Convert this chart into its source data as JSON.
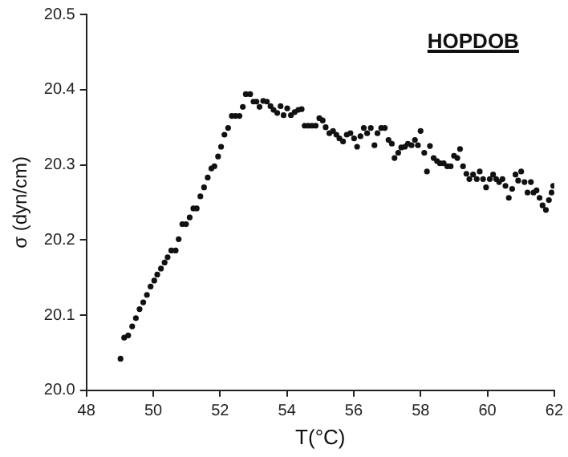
{
  "chart_data": {
    "type": "scatter",
    "xlabel": "T(°C)",
    "ylabel": "σ (dyn/cm)",
    "annotations": [
      "HOPDOB"
    ],
    "marker": "circle",
    "grid": false,
    "legend": false,
    "xlim": [
      48,
      62
    ],
    "xticks": [
      48,
      50,
      52,
      54,
      56,
      58,
      60,
      62
    ],
    "ylim": [
      20.0,
      20.5
    ],
    "yticks": [
      {
        "value": 20.0,
        "label": "20.0"
      },
      20.1,
      20.2,
      20.3,
      20.4,
      20.5
    ],
    "series": [
      {
        "color": "#111111",
        "x": [
          49.02,
          49.13,
          49.25,
          49.37,
          49.48,
          49.59,
          49.7,
          49.81,
          49.92,
          50.03,
          50.12,
          50.23,
          50.34,
          50.43,
          50.54,
          50.67,
          50.76,
          50.87,
          50.98,
          51.09,
          51.2,
          51.3,
          51.41,
          51.52,
          51.63,
          51.74,
          51.83,
          51.94,
          52.03,
          52.13,
          52.24,
          52.35,
          52.46,
          52.58,
          52.68,
          52.77,
          52.9,
          53.0,
          53.09,
          53.18,
          53.29,
          53.4,
          53.51,
          53.6,
          53.71,
          53.81,
          53.9,
          54.01,
          54.12,
          54.23,
          54.34,
          54.44,
          54.53,
          54.64,
          54.75,
          54.86,
          54.97,
          55.07,
          55.16,
          55.27,
          55.38,
          55.48,
          55.57,
          55.68,
          55.79,
          55.9,
          56.01,
          56.1,
          56.2,
          56.3,
          56.4,
          56.51,
          56.62,
          56.71,
          56.82,
          56.93,
          57.04,
          57.14,
          57.22,
          57.33,
          57.42,
          57.53,
          57.62,
          57.73,
          57.83,
          57.92,
          58.0,
          58.11,
          58.19,
          58.28,
          58.39,
          58.49,
          58.58,
          58.69,
          58.8,
          58.9,
          59.0,
          59.1,
          59.18,
          59.27,
          59.37,
          59.46,
          59.57,
          59.68,
          59.77,
          59.87,
          59.96,
          60.07,
          60.17,
          60.26,
          60.35,
          60.45,
          60.54,
          60.64,
          60.74,
          60.84,
          60.92,
          61.01,
          61.11,
          61.2,
          61.3,
          61.38,
          61.47,
          61.56,
          61.65,
          61.75,
          61.84,
          61.92,
          61.97
        ],
        "values": [
          20.042,
          20.07,
          20.073,
          20.085,
          20.096,
          20.108,
          20.117,
          20.127,
          20.138,
          20.146,
          20.154,
          20.162,
          20.17,
          20.177,
          20.186,
          20.186,
          20.201,
          20.221,
          20.221,
          20.23,
          20.242,
          20.242,
          20.258,
          20.27,
          20.283,
          20.295,
          20.298,
          20.311,
          20.324,
          20.34,
          20.349,
          20.365,
          20.365,
          20.365,
          20.377,
          20.394,
          20.394,
          20.384,
          20.384,
          20.377,
          20.385,
          20.384,
          20.378,
          20.373,
          20.369,
          20.378,
          20.366,
          20.375,
          20.366,
          20.37,
          20.373,
          20.374,
          20.352,
          20.352,
          20.352,
          20.352,
          20.362,
          20.359,
          20.35,
          20.342,
          20.345,
          20.34,
          20.335,
          20.331,
          20.34,
          20.342,
          20.335,
          20.324,
          20.338,
          20.349,
          20.342,
          20.349,
          20.326,
          20.342,
          20.349,
          20.349,
          20.333,
          20.328,
          20.309,
          20.316,
          20.323,
          20.324,
          20.328,
          20.326,
          20.333,
          20.326,
          20.345,
          20.316,
          20.291,
          20.325,
          20.309,
          20.305,
          20.302,
          20.302,
          20.298,
          20.298,
          20.312,
          20.309,
          20.321,
          20.298,
          20.288,
          20.281,
          20.287,
          20.281,
          20.291,
          20.281,
          20.27,
          20.281,
          20.287,
          20.281,
          20.277,
          20.281,
          20.272,
          20.256,
          20.268,
          20.287,
          20.279,
          20.291,
          20.277,
          20.263,
          20.277,
          20.263,
          20.266,
          20.256,
          20.246,
          20.24,
          20.253,
          20.263,
          20.272
        ]
      }
    ]
  }
}
